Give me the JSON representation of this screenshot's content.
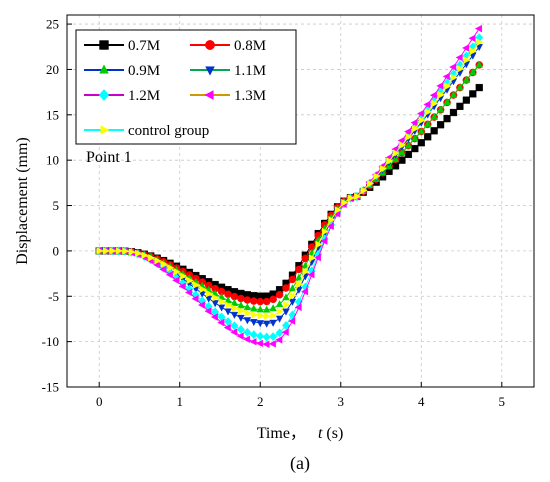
{
  "chart_data": {
    "type": "line",
    "xlabel_main": "Time，",
    "xlabel_var": "t",
    "xlabel_unit": " (s)",
    "ylabel": "Displacement (mm)",
    "xlim": [
      -0.4,
      5.4
    ],
    "ylim": [
      -15,
      26
    ],
    "xticks": [
      0,
      1,
      2,
      3,
      4,
      5
    ],
    "yticks": [
      -15,
      -10,
      -5,
      0,
      5,
      10,
      15,
      20,
      25
    ],
    "grid": true,
    "legend_position": "top-left",
    "annotation": "Point 1",
    "caption": "(a)",
    "series": [
      {
        "name": "0.7M",
        "color": "#000000",
        "marker": "square",
        "min": -5.0,
        "tmin": 2.05,
        "end": 18.0
      },
      {
        "name": "0.8M",
        "color": "#ff0000",
        "marker": "circle",
        "min": -5.6,
        "tmin": 2.05,
        "end": 20.5
      },
      {
        "name": "0.9M",
        "color": "#00cc00",
        "marker": "triangle-up",
        "min": -6.5,
        "tmin": 2.08,
        "end": 20.5
      },
      {
        "name": "1.1M",
        "color": "#0033cc",
        "marker": "triangle-down",
        "min": -8.0,
        "tmin": 2.1,
        "end": 22.5
      },
      {
        "name": "1.2M",
        "color": "#00ffff",
        "marker": "diamond",
        "min": -9.5,
        "tmin": 2.12,
        "end": 23.5
      },
      {
        "name": "1.3M",
        "color": "#ff00ff",
        "marker": "triangle-left",
        "min": -10.3,
        "tmin": 2.12,
        "end": 24.5
      },
      {
        "name": "control group",
        "color": "#ffff00",
        "marker": "triangle-right",
        "min": -7.2,
        "tmin": 2.1,
        "end": 23.0
      }
    ],
    "series_line_colors": [
      "#000000",
      "#ff0000",
      "#0033cc",
      "#00aa55",
      "#cc00cc",
      "#cc9900",
      "#00ffff"
    ]
  }
}
